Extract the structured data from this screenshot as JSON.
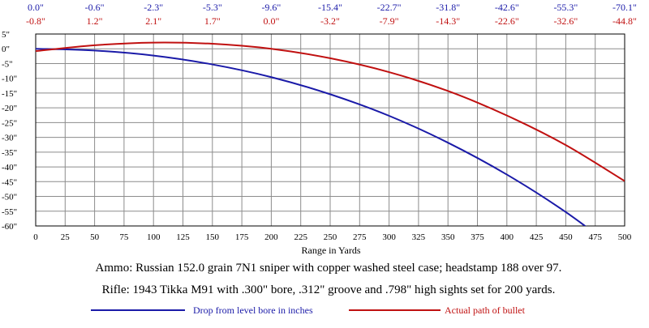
{
  "chart_data": {
    "type": "line",
    "xlabel": "Range in Yards",
    "ylabel": "",
    "xlim": [
      0,
      500
    ],
    "ylim": [
      -60,
      5
    ],
    "x_ticks": [
      0,
      25,
      50,
      75,
      100,
      125,
      150,
      175,
      200,
      225,
      250,
      275,
      300,
      325,
      350,
      375,
      400,
      425,
      450,
      475,
      500
    ],
    "y_ticks": [
      5,
      0,
      -5,
      -10,
      -15,
      -20,
      -25,
      -30,
      -35,
      -40,
      -45,
      -50,
      -55,
      -60
    ],
    "y_tick_labels": [
      "5\"",
      "0\"",
      "-5\"",
      "-10\"",
      "-15\"",
      "-20\"",
      "-25\"",
      "-30\"",
      "-35\"",
      "-40\"",
      "-45\"",
      "-50\"",
      "-55\"",
      "-60\""
    ],
    "grid": true,
    "top_table": {
      "x": [
        0,
        50,
        100,
        150,
        200,
        250,
        300,
        350,
        400,
        450,
        500
      ],
      "drop_labels": [
        "0.0\"",
        "-0.6\"",
        "-2.3\"",
        "-5.3\"",
        "-9.6\"",
        "-15.4\"",
        "-22.7\"",
        "-31.8\"",
        "-42.6\"",
        "-55.3\"",
        "-70.1\""
      ],
      "path_labels": [
        "-0.8\"",
        "1.2\"",
        "2.1\"",
        "1.7\"",
        "0.0\"",
        "-3.2\"",
        "-7.9\"",
        "-14.3\"",
        "-22.6\"",
        "-32.6\"",
        "-44.8\""
      ]
    },
    "series": [
      {
        "name": "Drop from level bore in inches",
        "color": "#1a1aa8",
        "x": [
          0,
          50,
          100,
          150,
          200,
          250,
          300,
          350,
          400,
          450,
          500
        ],
        "values": [
          0.0,
          -0.6,
          -2.3,
          -5.3,
          -9.6,
          -15.4,
          -22.7,
          -31.8,
          -42.6,
          -55.3,
          -70.1
        ]
      },
      {
        "name": "Actual path of bullet",
        "color": "#c01010",
        "x": [
          0,
          50,
          100,
          150,
          200,
          250,
          300,
          350,
          400,
          450,
          500
        ],
        "values": [
          -0.8,
          1.2,
          2.1,
          1.7,
          0.0,
          -3.2,
          -7.9,
          -14.3,
          -22.6,
          -32.6,
          -44.8
        ]
      }
    ]
  },
  "captions": [
    "Ammo: Russian 152.0 grain 7N1 sniper with copper washed steel case; headstamp 188 over 97.",
    "Rifle:  1943 Tikka M91 with .300\" bore, .312\" groove and .798\" high sights set for 200 yards."
  ],
  "legend": [
    {
      "label": "Drop from level bore in inches",
      "color": "#1a1aa8"
    },
    {
      "label": "Actual path of bullet",
      "color": "#c01010"
    }
  ]
}
